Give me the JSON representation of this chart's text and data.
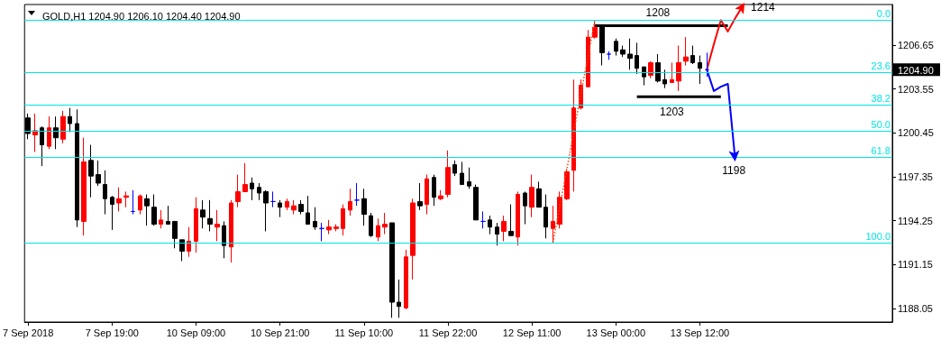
{
  "chart_data": {
    "type": "candlestick",
    "title": "GOLD,H1 1204.90 1206.10 1204.40 1204.90",
    "categories": [
      "7 Sep 2018",
      null,
      null,
      null,
      null,
      null,
      null,
      null,
      null,
      null,
      null,
      null,
      "7 Sep 19:00",
      null,
      null,
      null,
      null,
      null,
      null,
      null,
      null,
      null,
      null,
      null,
      "10 Sep 09:00",
      null,
      null,
      null,
      null,
      null,
      null,
      null,
      null,
      null,
      null,
      null,
      "10 Sep 21:00",
      null,
      null,
      null,
      null,
      null,
      null,
      null,
      null,
      null,
      null,
      null,
      "11 Sep 10:00",
      null,
      null,
      null,
      null,
      null,
      null,
      null,
      null,
      null,
      null,
      null,
      "11 Sep 22:00",
      null,
      null,
      null,
      null,
      null,
      null,
      null,
      null,
      null,
      null,
      null,
      "12 Sep 11:00",
      null,
      null,
      null,
      null,
      null,
      null,
      null,
      null,
      null,
      null,
      null,
      "13 Sep 00:00",
      null,
      null,
      null,
      null,
      null,
      null,
      null,
      null,
      null,
      null,
      null,
      "13 Sep 12:00",
      null,
      null,
      null,
      null,
      null,
      null,
      null,
      null,
      null,
      null,
      null,
      null,
      null,
      null,
      null,
      null,
      null,
      null,
      null,
      null,
      null,
      null,
      null,
      null,
      null,
      null,
      null
    ],
    "ylim": [
      1187.1,
      1209.5
    ],
    "yticks": [
      1188.05,
      1191.15,
      1194.25,
      1197.35,
      1200.45,
      1203.55,
      1206.65
    ],
    "series": [
      {
        "type": "candlestick",
        "ohlc": [
          [
            1201.5,
            1201.8,
            1200.0,
            1200.4
          ],
          [
            1200.3,
            1201.8,
            1199.1,
            1200.6
          ],
          [
            1200.8,
            1200.9,
            1198.1,
            1199.6
          ],
          [
            1199.5,
            1201.6,
            1199.3,
            1200.8
          ],
          [
            1200.8,
            1201.6,
            1199.3,
            1200.1
          ],
          [
            1200.0,
            1202.0,
            1199.7,
            1201.6
          ],
          [
            1201.6,
            1202.2,
            1200.5,
            1201.1
          ],
          [
            1201.1,
            1202.1,
            1193.8,
            1194.3
          ],
          [
            1194.2,
            1200.1,
            1193.2,
            1198.4
          ],
          [
            1198.5,
            1199.6,
            1195.9,
            1197.4
          ],
          [
            1197.5,
            1198.5,
            1196.7,
            1196.9
          ],
          [
            1196.8,
            1197.8,
            1194.7,
            1195.8
          ],
          [
            1195.9,
            1196.0,
            1193.6,
            1195.4
          ],
          [
            1195.5,
            1196.6,
            1194.9,
            1195.8
          ],
          [
            1195.9,
            1196.3,
            1195.2,
            1196.0
          ],
          [
            1194.9,
            1196.4,
            1194.7,
            1194.9
          ],
          [
            1195.0,
            1196.1,
            1194.7,
            1196.0
          ],
          [
            1195.8,
            1196.1,
            1193.9,
            1195.3
          ],
          [
            1195.2,
            1196.1,
            1193.9,
            1194.0
          ],
          [
            1194.0,
            1195.0,
            1193.7,
            1194.3
          ],
          [
            1194.2,
            1195.3,
            1194.0,
            1194.0
          ],
          [
            1194.2,
            1194.2,
            1192.3,
            1193.0
          ],
          [
            1192.9,
            1192.9,
            1191.4,
            1192.1
          ],
          [
            1192.1,
            1193.8,
            1191.7,
            1192.8
          ],
          [
            1192.8,
            1195.9,
            1192.0,
            1195.1
          ],
          [
            1195.0,
            1195.7,
            1193.7,
            1194.5
          ],
          [
            1194.4,
            1195.7,
            1193.5,
            1194.0
          ],
          [
            1193.8,
            1195.0,
            1192.8,
            1194.0
          ],
          [
            1193.9,
            1194.2,
            1191.6,
            1192.5
          ],
          [
            1192.4,
            1195.7,
            1191.3,
            1195.5
          ],
          [
            1195.6,
            1197.5,
            1195.2,
            1196.3
          ],
          [
            1196.3,
            1198.3,
            1196.3,
            1196.8
          ],
          [
            1196.9,
            1197.3,
            1195.7,
            1196.5
          ],
          [
            1196.6,
            1196.9,
            1195.7,
            1196.2
          ],
          [
            1196.3,
            1196.4,
            1193.5,
            1195.5
          ],
          [
            1195.6,
            1196.3,
            1195.2,
            1195.6
          ],
          [
            1195.5,
            1195.7,
            1194.5,
            1195.2
          ],
          [
            1195.2,
            1195.8,
            1195.0,
            1195.6
          ],
          [
            1195.0,
            1195.7,
            1194.7,
            1195.3
          ],
          [
            1195.4,
            1195.7,
            1194.7,
            1194.9
          ],
          [
            1194.8,
            1196.0,
            1194.0,
            1194.0
          ],
          [
            1194.2,
            1195.2,
            1193.6,
            1193.8
          ],
          [
            1193.7,
            1194.1,
            1192.8,
            1193.7
          ],
          [
            1193.6,
            1194.3,
            1193.3,
            1193.8
          ],
          [
            1193.7,
            1194.0,
            1193.5,
            1193.8
          ],
          [
            1193.7,
            1195.4,
            1193.2,
            1195.1
          ],
          [
            1195.0,
            1196.5,
            1194.6,
            1195.6
          ],
          [
            1195.7,
            1196.9,
            1195.3,
            1195.7
          ],
          [
            1195.8,
            1196.5,
            1193.9,
            1194.7
          ],
          [
            1194.6,
            1194.8,
            1193.1,
            1193.2
          ],
          [
            1193.1,
            1194.4,
            1192.8,
            1193.9
          ],
          [
            1193.8,
            1194.8,
            1193.3,
            1194.0
          ],
          [
            1194.1,
            1194.1,
            1187.4,
            1188.5
          ],
          [
            1188.5,
            1190.1,
            1187.4,
            1188.2
          ],
          [
            1188.1,
            1192.2,
            1188.0,
            1191.7
          ],
          [
            1191.8,
            1195.8,
            1190.1,
            1195.5
          ],
          [
            1195.6,
            1196.9,
            1195.0,
            1195.3
          ],
          [
            1195.4,
            1197.5,
            1194.7,
            1197.2
          ],
          [
            1197.3,
            1197.5,
            1195.3,
            1195.9
          ],
          [
            1195.8,
            1196.4,
            1195.7,
            1196.0
          ],
          [
            1196.1,
            1199.2,
            1195.9,
            1198.0
          ],
          [
            1198.2,
            1198.5,
            1197.4,
            1197.6
          ],
          [
            1197.6,
            1198.4,
            1196.8,
            1196.8
          ],
          [
            1197.0,
            1198.0,
            1196.5,
            1196.7
          ],
          [
            1196.6,
            1196.8,
            1194.3,
            1194.3
          ],
          [
            1194.2,
            1194.9,
            1193.7,
            1194.2
          ],
          [
            1194.3,
            1194.6,
            1193.3,
            1193.8
          ],
          [
            1193.8,
            1194.1,
            1192.5,
            1193.3
          ],
          [
            1193.5,
            1194.6,
            1192.8,
            1194.2
          ],
          [
            1193.5,
            1195.4,
            1193.2,
            1193.2
          ],
          [
            1193.1,
            1196.3,
            1192.5,
            1196.1
          ],
          [
            1196.2,
            1196.3,
            1194.0,
            1195.3
          ],
          [
            1195.2,
            1197.5,
            1194.5,
            1196.6
          ],
          [
            1196.5,
            1197.0,
            1195.2,
            1195.2
          ],
          [
            1195.2,
            1196.1,
            1193.0,
            1193.8
          ],
          [
            1193.7,
            1195.3,
            1192.7,
            1194.2
          ],
          [
            1194.0,
            1196.3,
            1193.7,
            1195.9
          ],
          [
            1195.8,
            1197.9,
            1195.7,
            1197.7
          ],
          [
            1197.8,
            1204.2,
            1196.3,
            1202.2
          ],
          [
            1202.2,
            1204.2,
            1202.1,
            1203.8
          ],
          [
            1203.7,
            1207.7,
            1203.7,
            1207.2
          ],
          [
            1207.2,
            1208.4,
            1207.1,
            1207.9
          ],
          [
            1208.0,
            1208.0,
            1205.2,
            1206.1
          ],
          [
            1206.0,
            1206.2,
            1205.6,
            1206.0
          ],
          [
            1206.9,
            1207.1,
            1205.9,
            1206.2
          ],
          [
            1206.3,
            1206.6,
            1205.8,
            1206.0
          ],
          [
            1206.0,
            1207.1,
            1204.9,
            1205.7
          ],
          [
            1205.9,
            1206.8,
            1204.6,
            1205.0
          ],
          [
            1205.1,
            1205.1,
            1203.8,
            1204.4
          ],
          [
            1204.5,
            1205.5,
            1204.3,
            1205.4
          ],
          [
            1205.4,
            1206.0,
            1204.0,
            1204.1
          ],
          [
            1204.2,
            1204.9,
            1203.6,
            1203.9
          ],
          [
            1204.0,
            1205.4,
            1204.0,
            1204.2
          ],
          [
            1204.1,
            1206.6,
            1203.4,
            1205.4
          ],
          [
            1205.5,
            1207.2,
            1205.2,
            1205.8
          ],
          [
            1205.9,
            1206.6,
            1205.3,
            1205.4
          ],
          [
            1205.4,
            1205.9,
            1203.9,
            1205.0
          ],
          [
            1204.9,
            1206.1,
            1204.4,
            1204.9
          ],
          null,
          null,
          null,
          null,
          null,
          null,
          null,
          null,
          null,
          null,
          null,
          null,
          null,
          null,
          null,
          null,
          null,
          null,
          null,
          null,
          null,
          null,
          null,
          null,
          null,
          null
        ],
        "colors": [
          "#000000",
          "#ff0000",
          "#000000",
          "#ff0000",
          "#000000",
          "#ff0000",
          "#000000",
          "#000000",
          "#ff0000",
          "#000000",
          "#000000",
          "#000000",
          "#000000",
          "#ff0000",
          "#ff0000",
          "#0000ff",
          "#ff0000",
          "#000000",
          "#000000",
          "#ff0000",
          "#000000",
          "#000000",
          "#000000",
          "#ff0000",
          "#ff0000",
          "#000000",
          "#000000",
          "#ff0000",
          "#000000",
          "#ff0000",
          "#ff0000",
          "#ff0000",
          "#000000",
          "#000000",
          "#000000",
          "#0000ff",
          "#000000",
          "#ff0000",
          "#ff0000",
          "#000000",
          "#000000",
          "#000000",
          "#0000ff",
          "#ff0000",
          "#ff0000",
          "#ff0000",
          "#ff0000",
          "#0000ff",
          "#000000",
          "#000000",
          "#ff0000",
          "#ff0000",
          "#000000",
          "#000000",
          "#ff0000",
          "#ff0000",
          "#000000",
          "#ff0000",
          "#000000",
          "#ff0000",
          "#ff0000",
          "#000000",
          "#000000",
          "#000000",
          "#000000",
          "#0000ff",
          "#000000",
          "#000000",
          "#ff0000",
          "#000000",
          "#ff0000",
          "#000000",
          "#ff0000",
          "#000000",
          "#000000",
          "#ff0000",
          "#ff0000",
          "#ff0000",
          "#ff0000",
          "#ff0000",
          "#ff0000",
          "#ff0000",
          "#000000",
          "#0000ff",
          "#000000",
          "#000000",
          "#000000",
          "#000000",
          "#000000",
          "#ff0000",
          "#000000",
          "#000000",
          "#ff0000",
          "#ff0000",
          "#ff0000",
          "#000000",
          "#000000",
          "#0000ff",
          null,
          null,
          null,
          null,
          null,
          null,
          null,
          null,
          null,
          null,
          null,
          null,
          null,
          null,
          null,
          null,
          null,
          null,
          null,
          null,
          null,
          null,
          null,
          null,
          null,
          null
        ]
      },
      {
        "type": "line",
        "color": "#ff4500",
        "line_style": "dotted",
        "values": [
          null,
          null,
          null,
          null,
          null,
          null,
          null,
          null,
          null,
          null,
          null,
          null,
          null,
          null,
          null,
          null,
          null,
          null,
          null,
          null,
          null,
          null,
          null,
          null,
          null,
          null,
          null,
          null,
          null,
          null,
          null,
          null,
          null,
          null,
          null,
          null,
          null,
          null,
          null,
          null,
          null,
          null,
          null,
          null,
          null,
          null,
          null,
          null,
          null,
          null,
          null,
          null,
          null,
          null,
          null,
          null,
          null,
          null,
          null,
          null,
          null,
          null,
          null,
          null,
          null,
          null,
          null,
          null,
          null,
          null,
          null,
          null,
          null,
          null,
          null,
          1192.7,
          1195.3,
          1197.9,
          1200.6,
          1203.2,
          1205.8,
          1208.4,
          null,
          null,
          null,
          null,
          null,
          null,
          null,
          null,
          null,
          null,
          null,
          null,
          null,
          null,
          null,
          null,
          null,
          null,
          null,
          null,
          null,
          null,
          null,
          null,
          null,
          null,
          null,
          null,
          null,
          null,
          null,
          null,
          null,
          null,
          null,
          null,
          null,
          null,
          null,
          null,
          null,
          null
        ]
      },
      {
        "type": "line",
        "color": "#000000",
        "values": [
          null,
          null,
          null,
          null,
          null,
          null,
          null,
          null,
          null,
          null,
          null,
          null,
          null,
          null,
          null,
          null,
          null,
          null,
          null,
          null,
          null,
          null,
          null,
          null,
          null,
          null,
          null,
          null,
          null,
          null,
          null,
          null,
          null,
          null,
          null,
          null,
          null,
          null,
          null,
          null,
          null,
          null,
          null,
          null,
          null,
          null,
          null,
          null,
          null,
          null,
          null,
          null,
          null,
          null,
          null,
          null,
          null,
          null,
          null,
          null,
          null,
          null,
          null,
          null,
          null,
          null,
          null,
          null,
          null,
          null,
          null,
          null,
          null,
          null,
          null,
          null,
          null,
          null,
          null,
          null,
          null,
          1208,
          1208,
          1208,
          1208,
          1208,
          1208,
          1208,
          1208,
          1208,
          1208,
          1208,
          1208,
          1208,
          1208,
          1208,
          1208,
          1208,
          1208,
          1208,
          1208,
          null,
          null,
          null,
          null,
          null,
          null,
          null,
          null,
          null,
          null,
          null,
          null,
          null,
          null,
          null,
          null,
          null,
          null,
          null,
          null,
          null,
          null,
          null
        ],
        "value_labels": [
          null,
          null,
          null,
          null,
          null,
          null,
          null,
          null,
          null,
          null,
          null,
          null,
          null,
          null,
          null,
          null,
          null,
          null,
          null,
          null,
          null,
          null,
          null,
          null,
          null,
          null,
          null,
          null,
          null,
          null,
          null,
          null,
          null,
          null,
          null,
          null,
          null,
          null,
          null,
          null,
          null,
          null,
          null,
          null,
          null,
          null,
          null,
          null,
          null,
          null,
          null,
          null,
          null,
          null,
          null,
          null,
          null,
          null,
          null,
          null,
          null,
          null,
          null,
          null,
          null,
          null,
          null,
          null,
          null,
          null,
          null,
          null,
          null,
          null,
          null,
          null,
          null,
          null,
          null,
          null,
          null,
          null,
          null,
          null,
          null,
          null,
          null,
          null,
          null,
          null,
          "1208",
          null,
          null,
          null,
          null,
          null,
          null,
          null,
          null,
          null,
          null,
          null,
          null,
          null,
          null,
          null,
          null,
          null,
          null,
          null,
          null,
          null,
          null,
          null,
          null,
          null,
          null,
          null,
          null,
          null,
          null,
          null,
          null,
          null
        ]
      },
      {
        "type": "line",
        "color": "#000000",
        "values": [
          null,
          null,
          null,
          null,
          null,
          null,
          null,
          null,
          null,
          null,
          null,
          null,
          null,
          null,
          null,
          null,
          null,
          null,
          null,
          null,
          null,
          null,
          null,
          null,
          null,
          null,
          null,
          null,
          null,
          null,
          null,
          null,
          null,
          null,
          null,
          null,
          null,
          null,
          null,
          null,
          null,
          null,
          null,
          null,
          null,
          null,
          null,
          null,
          null,
          null,
          null,
          null,
          null,
          null,
          null,
          null,
          null,
          null,
          null,
          null,
          null,
          null,
          null,
          null,
          null,
          null,
          null,
          null,
          null,
          null,
          null,
          null,
          null,
          null,
          null,
          null,
          null,
          null,
          null,
          null,
          null,
          null,
          null,
          null,
          null,
          null,
          null,
          1203,
          1203,
          1203,
          1203,
          1203,
          1203,
          1203,
          1203,
          1203,
          1203,
          1203,
          1203,
          1203,
          null,
          null,
          null,
          null,
          null,
          null,
          null,
          null,
          null,
          null,
          null,
          null,
          null,
          null,
          null,
          null,
          null,
          null,
          null,
          null,
          null,
          null,
          null,
          null
        ],
        "value_labels": [
          null,
          null,
          null,
          null,
          null,
          null,
          null,
          null,
          null,
          null,
          null,
          null,
          null,
          null,
          null,
          null,
          null,
          null,
          null,
          null,
          null,
          null,
          null,
          null,
          null,
          null,
          null,
          null,
          null,
          null,
          null,
          null,
          null,
          null,
          null,
          null,
          null,
          null,
          null,
          null,
          null,
          null,
          null,
          null,
          null,
          null,
          null,
          null,
          null,
          null,
          null,
          null,
          null,
          null,
          null,
          null,
          null,
          null,
          null,
          null,
          null,
          null,
          null,
          null,
          null,
          null,
          null,
          null,
          null,
          null,
          null,
          null,
          null,
          null,
          null,
          null,
          null,
          null,
          null,
          null,
          null,
          null,
          null,
          null,
          null,
          null,
          null,
          null,
          null,
          null,
          null,
          null,
          "1203",
          null,
          null,
          null,
          null,
          null,
          null,
          null,
          null,
          null,
          null,
          null,
          null,
          null,
          null,
          null,
          null,
          null,
          null,
          null,
          null,
          null,
          null,
          null,
          null,
          null,
          null,
          null,
          null,
          null,
          null,
          null
        ]
      },
      {
        "type": "line",
        "color": "#ff0000",
        "values": [
          null,
          null,
          null,
          null,
          null,
          null,
          null,
          null,
          null,
          null,
          null,
          null,
          null,
          null,
          null,
          null,
          null,
          null,
          null,
          null,
          null,
          null,
          null,
          null,
          null,
          null,
          null,
          null,
          null,
          null,
          null,
          null,
          null,
          null,
          null,
          null,
          null,
          null,
          null,
          null,
          null,
          null,
          null,
          null,
          null,
          null,
          null,
          null,
          null,
          null,
          null,
          null,
          null,
          null,
          null,
          null,
          null,
          null,
          null,
          null,
          null,
          null,
          null,
          null,
          null,
          null,
          null,
          null,
          null,
          null,
          null,
          null,
          null,
          null,
          null,
          null,
          null,
          null,
          null,
          null,
          null,
          null,
          null,
          null,
          null,
          null,
          null,
          null,
          null,
          null,
          null,
          null,
          null,
          null,
          null,
          null,
          null,
          1204.9,
          1206.7,
          1208.4,
          1207.6,
          1208.5,
          1209.3,
          null,
          null,
          null,
          null,
          null,
          null,
          null,
          null,
          null,
          null,
          null,
          null,
          null,
          null,
          null,
          null,
          null,
          null,
          null,
          null,
          null
        ]
      },
      {
        "type": "line",
        "color": "#0000ff",
        "values": [
          null,
          null,
          null,
          null,
          null,
          null,
          null,
          null,
          null,
          null,
          null,
          null,
          null,
          null,
          null,
          null,
          null,
          null,
          null,
          null,
          null,
          null,
          null,
          null,
          null,
          null,
          null,
          null,
          null,
          null,
          null,
          null,
          null,
          null,
          null,
          null,
          null,
          null,
          null,
          null,
          null,
          null,
          null,
          null,
          null,
          null,
          null,
          null,
          null,
          null,
          null,
          null,
          null,
          null,
          null,
          null,
          null,
          null,
          null,
          null,
          null,
          null,
          null,
          null,
          null,
          null,
          null,
          null,
          null,
          null,
          null,
          null,
          null,
          null,
          null,
          null,
          null,
          null,
          null,
          null,
          null,
          null,
          null,
          null,
          null,
          null,
          null,
          null,
          null,
          null,
          null,
          null,
          null,
          null,
          null,
          null,
          null,
          1204.9,
          1203.4,
          1203.7,
          1203.9,
          1198.8,
          null,
          null,
          null,
          null,
          null,
          null,
          null,
          null,
          null,
          null,
          null,
          null,
          null,
          null,
          null,
          null,
          null,
          null,
          null,
          null,
          null,
          null
        ]
      }
    ],
    "ref_lines": [
      {
        "axis": "y",
        "value": 1208.4,
        "color": "#00e5e5"
      },
      {
        "axis": "y",
        "value": 1204.7,
        "color": "#00e5e5"
      },
      {
        "axis": "y",
        "value": 1202.4,
        "color": "#00e5e5"
      },
      {
        "axis": "y",
        "value": 1200.55,
        "color": "#00e5e5"
      },
      {
        "axis": "y",
        "value": 1198.7,
        "color": "#00e5e5"
      },
      {
        "axis": "y",
        "value": 1192.7,
        "color": "#00e5e5"
      }
    ],
    "annotations": [
      "1204.90",
      "1214",
      "1198",
      {
        "text": "0.0",
        "y": 1208.4
      },
      {
        "text": "23.6",
        "y": 1204.7
      },
      {
        "text": "38.2",
        "y": 1202.4
      },
      {
        "text": "50.0",
        "y": 1200.55
      },
      {
        "text": "61.8",
        "y": 1198.7
      },
      {
        "text": "100.0",
        "y": 1192.7
      }
    ]
  }
}
